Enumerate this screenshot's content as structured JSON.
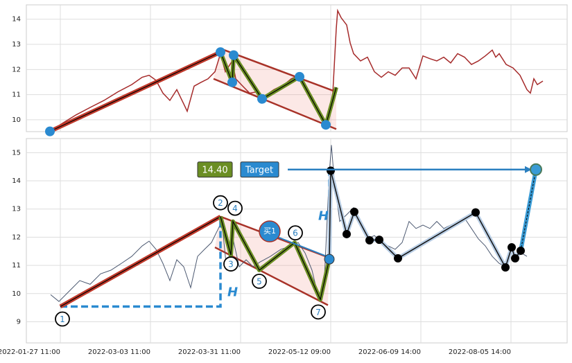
{
  "chart_data": [
    {
      "type": "line",
      "xlim": [
        -49,
        731
      ],
      "ylim": [
        9.53,
        14.57
      ],
      "yticks": [
        10,
        11,
        12,
        13,
        14
      ],
      "xticks": [
        0,
        130,
        260,
        390,
        520,
        650
      ],
      "grid": true,
      "series": [
        {
          "color": "#a52a2a",
          "x": [
            -15,
            3,
            23,
            43,
            63,
            83,
            103,
            118,
            128,
            138,
            148,
            158,
            168,
            178,
            183,
            193,
            203,
            213,
            223,
            231,
            238,
            248,
            253,
            263,
            273,
            283,
            293,
            308,
            323,
            333,
            345,
            353,
            363,
            373,
            383,
            393,
            398,
            400,
            405,
            413,
            418,
            423,
            433,
            443,
            453,
            463,
            473,
            483,
            493,
            503,
            513,
            523,
            533,
            543,
            553,
            563,
            573,
            583,
            593,
            603,
            613,
            623,
            628,
            633,
            643,
            653,
            663,
            673,
            678,
            683,
            688,
            696
          ],
          "values": [
            9.54,
            9.86,
            10.2,
            10.49,
            10.77,
            11.11,
            11.4,
            11.69,
            11.77,
            11.57,
            11.06,
            10.77,
            11.2,
            10.63,
            10.34,
            11.34,
            11.49,
            11.63,
            11.91,
            12.63,
            11.91,
            12.34,
            11.63,
            11.34,
            11.06,
            11.11,
            10.91,
            11.2,
            11.4,
            11.63,
            11.77,
            11.34,
            10.77,
            10.2,
            9.77,
            11.06,
            13.63,
            14.34,
            14.06,
            13.77,
            13.06,
            12.63,
            12.34,
            12.49,
            11.91,
            11.69,
            11.91,
            11.77,
            12.06,
            12.06,
            11.63,
            12.54,
            12.43,
            12.34,
            12.49,
            12.26,
            12.63,
            12.49,
            12.2,
            12.34,
            12.54,
            12.77,
            12.49,
            12.63,
            12.2,
            12.06,
            11.77,
            11.2,
            11.06,
            11.63,
            11.4,
            11.54
          ]
        }
      ],
      "channel": {
        "upper": {
          "x": [
            231,
            398
          ],
          "y": [
            12.83,
            11.11
          ]
        },
        "lower": {
          "x": [
            221,
            398
          ],
          "y": [
            11.63,
            9.63
          ]
        }
      },
      "trend": {
        "x": [
          -15,
          231
        ],
        "y": [
          9.54,
          12.69
        ]
      },
      "zigzag": {
        "x": [
          231,
          248,
          250,
          291,
          345,
          383,
          398
        ],
        "y": [
          12.69,
          11.49,
          12.57,
          10.83,
          11.71,
          9.8,
          11.29
        ]
      },
      "points": {
        "color": "#2a8ad0",
        "x": [
          -15,
          231,
          250,
          248,
          291,
          345,
          383
        ],
        "y": [
          9.54,
          12.69,
          12.57,
          11.49,
          10.83,
          11.71,
          9.8
        ]
      }
    },
    {
      "type": "line",
      "xlim": [
        -49,
        731
      ],
      "ylim": [
        8.25,
        15.5
      ],
      "yticks": [
        9,
        10,
        11,
        12,
        13,
        14,
        15
      ],
      "xticks": [
        {
          "value": 0,
          "label": "2022-01-27 11:00"
        },
        {
          "value": 130,
          "label": "2022-03-03 11:00"
        },
        {
          "value": 260,
          "label": "2022-03-31 11:00"
        },
        {
          "value": 390,
          "label": "2022-05-12 09:00"
        },
        {
          "value": 520,
          "label": "2022-06-09 14:00"
        },
        {
          "value": 650,
          "label": "2022-08-05 14:00"
        }
      ],
      "grid": true,
      "series": [
        {
          "color": "#4b5870",
          "x": [
            -14,
            -2,
            13,
            28,
            43,
            58,
            73,
            88,
            103,
            118,
            128,
            138,
            148,
            158,
            168,
            178,
            188,
            198,
            208,
            218,
            228,
            233,
            240,
            248,
            258,
            268,
            278,
            288,
            303,
            318,
            333,
            343,
            353,
            363,
            373,
            381,
            388,
            391,
            395,
            403,
            413,
            423,
            433,
            443,
            453,
            463,
            473,
            483,
            493,
            503,
            513,
            523,
            533,
            543,
            553,
            563,
            573,
            583,
            593,
            603,
            613,
            623,
            633,
            643,
            651,
            658,
            665,
            673
          ],
          "values": [
            9.96,
            9.72,
            10.09,
            10.46,
            10.33,
            10.7,
            10.83,
            11.07,
            11.32,
            11.69,
            11.86,
            11.57,
            11.07,
            10.46,
            11.2,
            10.95,
            10.21,
            11.32,
            11.57,
            11.81,
            12.31,
            12.56,
            10.83,
            12.06,
            10.95,
            11.2,
            10.95,
            11.12,
            11.32,
            11.57,
            11.69,
            11.81,
            11.44,
            10.83,
            9.79,
            10.58,
            14.28,
            15.27,
            14.04,
            12.56,
            12.8,
            13.05,
            12.56,
            11.94,
            12.06,
            11.81,
            11.69,
            11.57,
            11.81,
            12.56,
            12.31,
            12.43,
            12.31,
            12.56,
            12.31,
            12.43,
            12.56,
            12.68,
            12.31,
            11.94,
            11.69,
            11.32,
            11.07,
            10.95,
            11.57,
            11.32,
            11.44,
            11.32
          ]
        }
      ],
      "channel": {
        "upper": {
          "x": [
            231,
            388
          ],
          "y": [
            12.73,
            11.27
          ]
        },
        "lower": {
          "x": [
            223,
            386
          ],
          "y": [
            11.64,
            9.59
          ]
        }
      },
      "pattern": {
        "labels": [
          "1",
          "2",
          "3",
          "4",
          "5",
          "6",
          "7"
        ],
        "x": [
          0,
          231,
          246,
          249,
          287,
          338,
          375
        ],
        "y": [
          9.54,
          12.73,
          11.37,
          12.56,
          10.83,
          11.81,
          9.79
        ]
      },
      "buy": {
        "label": "买1",
        "x": 388,
        "y": 11.22,
        "color": "#2a8ad0"
      },
      "h_label": "H",
      "forecast": {
        "x": [
          390,
          413,
          424,
          446,
          460,
          487,
          599,
          642,
          651,
          656,
          664
        ],
        "y": [
          14.36,
          12.11,
          12.9,
          11.89,
          11.91,
          11.25,
          12.88,
          10.93,
          11.64,
          11.25,
          11.52
        ]
      },
      "target": {
        "text": "Target",
        "x": 686,
        "value": 14.4,
        "value_label": "14.40"
      }
    }
  ]
}
